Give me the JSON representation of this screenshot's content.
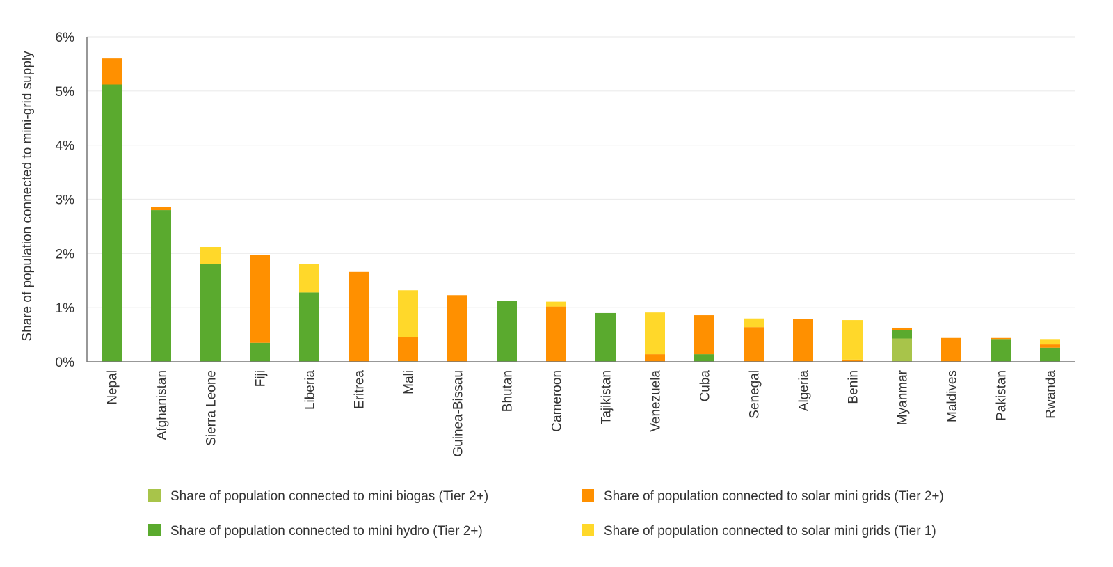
{
  "chart_data": {
    "type": "bar",
    "stacked": true,
    "ylabel": "Share of population connected to mini-grid supply",
    "xlabel": "",
    "ylim": [
      0,
      6
    ],
    "yticks": [
      "0%",
      "1%",
      "2%",
      "3%",
      "4%",
      "5%",
      "6%"
    ],
    "grid": true,
    "legend_position": "bottom",
    "categories": [
      "Nepal",
      "Afghanistan",
      "Sierra Leone",
      "Fiji",
      "Liberia",
      "Eritrea",
      "Mali",
      "Guinea-Bissau",
      "Bhutan",
      "Cameroon",
      "Tajikistan",
      "Venezuela",
      "Cuba",
      "Senegal",
      "Algeria",
      "Benin",
      "Myanmar",
      "Maldives",
      "Pakistan",
      "Rwanda"
    ],
    "series": [
      {
        "name": "Share of population connected to mini biogas (Tier 2+)",
        "color": "#a8c44a",
        "values": [
          0,
          0,
          0,
          0,
          0,
          0,
          0,
          0,
          0,
          0,
          0,
          0,
          0,
          0,
          0,
          0,
          0.43,
          0,
          0,
          0
        ]
      },
      {
        "name": "Share of population connected to mini hydro (Tier 2+)",
        "color": "#5aaa2e",
        "values": [
          5.12,
          2.8,
          1.81,
          0.35,
          1.28,
          0,
          0.01,
          0,
          1.12,
          0,
          0.9,
          0,
          0.14,
          0,
          0,
          0,
          0.16,
          0,
          0.42,
          0.26
        ]
      },
      {
        "name": "Share of population connected to solar mini grids (Tier 2+)",
        "color": "#ff9000",
        "values": [
          0.48,
          0.06,
          0,
          1.62,
          0,
          1.66,
          0.45,
          1.23,
          0,
          1.02,
          0,
          0.14,
          0.72,
          0.64,
          0.79,
          0.04,
          0.03,
          0.44,
          0.02,
          0.06
        ]
      },
      {
        "name": "Share of population connected to solar mini grids (Tier 1)",
        "color": "#ffd82a",
        "values": [
          0,
          0,
          0.31,
          0,
          0.52,
          0,
          0.86,
          0,
          0,
          0.09,
          0,
          0.77,
          0,
          0.16,
          0,
          0.73,
          0.01,
          0,
          0,
          0.1
        ]
      }
    ],
    "legend_order": [
      0,
      2,
      1,
      3
    ]
  }
}
